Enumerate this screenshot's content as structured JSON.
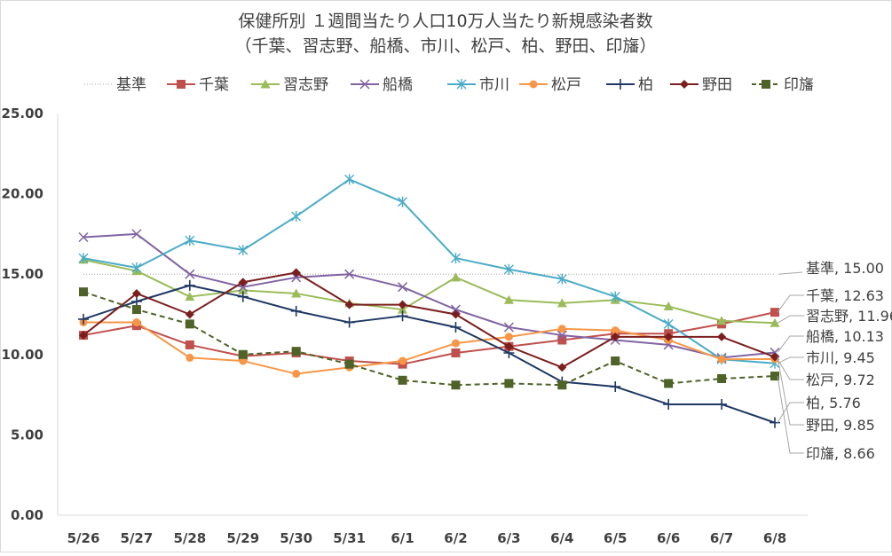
{
  "chart_data": {
    "type": "line",
    "title_line1": "保健所別 １週間当たり人口10万人当たり新規感染者数",
    "title_line2": "（千葉、習志野、船橋、市川、松戸、柏、野田、印旛）",
    "xlabel": "",
    "ylabel": "",
    "ylim": [
      0,
      25
    ],
    "yticks": [
      "0.00",
      "5.00",
      "10.00",
      "15.00",
      "20.00",
      "25.00"
    ],
    "categories": [
      "5/26",
      "5/27",
      "5/28",
      "5/29",
      "5/30",
      "5/31",
      "6/1",
      "6/2",
      "6/3",
      "6/4",
      "6/5",
      "6/6",
      "6/7",
      "6/8"
    ],
    "legend_position": "top",
    "grid": false,
    "series": [
      {
        "name": "基準",
        "color": "#a6a6a6",
        "marker": "none",
        "dash": "dotted",
        "values": [
          15,
          15,
          15,
          15,
          15,
          15,
          15,
          15,
          15,
          15,
          15,
          15,
          15,
          15
        ],
        "end_label": "基準, 15.00"
      },
      {
        "name": "千葉",
        "color": "#c0504d",
        "marker": "square",
        "dash": "solid",
        "values": [
          11.2,
          11.8,
          10.6,
          9.9,
          10.1,
          9.6,
          9.4,
          10.1,
          10.5,
          10.9,
          11.3,
          11.3,
          11.9,
          12.63
        ],
        "end_label": "千葉, 12.63"
      },
      {
        "name": "習志野",
        "color": "#9bbb59",
        "marker": "triangle",
        "dash": "solid",
        "values": [
          15.9,
          15.2,
          13.6,
          14.0,
          13.8,
          13.2,
          12.8,
          14.8,
          13.4,
          13.2,
          13.4,
          13.0,
          12.1,
          11.96
        ],
        "end_label": "習志野, 11.96"
      },
      {
        "name": "船橋",
        "color": "#8064a2",
        "marker": "x",
        "dash": "solid",
        "values": [
          17.3,
          17.5,
          15.0,
          14.2,
          14.8,
          15.0,
          14.2,
          12.8,
          11.7,
          11.2,
          10.9,
          10.6,
          9.8,
          10.13
        ],
        "end_label": "船橋, 10.13"
      },
      {
        "name": "市川",
        "color": "#4bacc6",
        "marker": "star",
        "dash": "solid",
        "values": [
          16.0,
          15.4,
          17.1,
          16.5,
          18.6,
          20.9,
          19.5,
          16.0,
          15.3,
          14.7,
          13.6,
          11.9,
          9.7,
          9.45
        ],
        "end_label": "市川, 9.45"
      },
      {
        "name": "松戸",
        "color": "#f79646",
        "marker": "circle",
        "dash": "solid",
        "values": [
          12.0,
          12.0,
          9.8,
          9.6,
          8.8,
          9.2,
          9.6,
          10.7,
          11.1,
          11.6,
          11.5,
          10.9,
          9.7,
          9.72
        ],
        "end_label": "松戸, 9.72"
      },
      {
        "name": "柏",
        "color": "#1f3864",
        "marker": "plus",
        "dash": "solid",
        "values": [
          12.2,
          13.3,
          14.3,
          13.6,
          12.7,
          12.0,
          12.4,
          11.7,
          10.1,
          8.3,
          8.0,
          6.9,
          6.9,
          5.76
        ],
        "end_label": "柏, 5.76"
      },
      {
        "name": "野田",
        "color": "#7b1e1e",
        "marker": "diamond",
        "dash": "solid",
        "values": [
          11.2,
          13.8,
          12.5,
          14.5,
          15.1,
          13.1,
          13.1,
          12.5,
          10.5,
          9.2,
          11.1,
          11.1,
          11.1,
          9.85
        ],
        "end_label": "野田, 9.85"
      },
      {
        "name": "印旛",
        "color": "#4f6228",
        "marker": "square",
        "dash": "dashed",
        "values": [
          13.9,
          12.8,
          11.9,
          10.0,
          10.2,
          9.4,
          8.4,
          8.1,
          8.2,
          8.1,
          9.6,
          8.2,
          8.5,
          8.66
        ],
        "end_label": "印旛, 8.66"
      }
    ]
  }
}
